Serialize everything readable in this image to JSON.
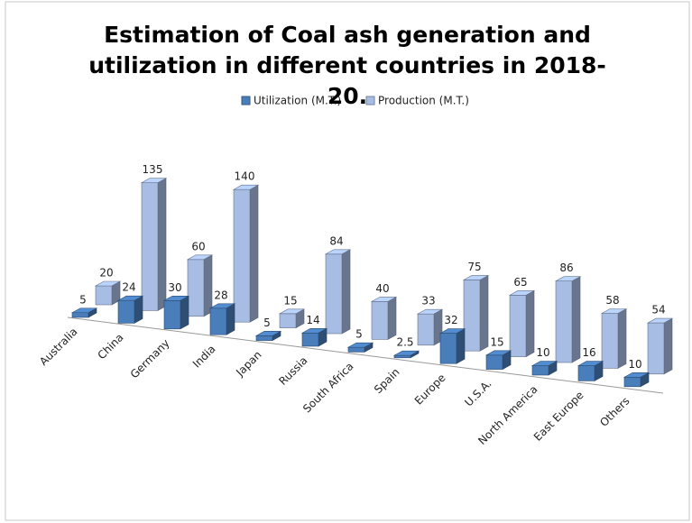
{
  "chart_data": {
    "type": "bar3d",
    "title": "Estimation of Coal ash generation and utilization in different countries in 2018-20.",
    "categories": [
      "Australia",
      "China",
      "Germany",
      "India",
      "Japan",
      "Russia",
      "South Africa",
      "Spain",
      "Europe",
      "U.S.A.",
      "North America",
      "East Europe",
      "Others"
    ],
    "series": [
      {
        "name": "Utilization (M.T.)",
        "color": "#4a7ebb",
        "values": [
          5,
          24,
          30,
          28,
          5,
          14,
          5,
          2.5,
          32,
          15,
          10,
          16,
          10
        ]
      },
      {
        "name": "Production (M.T.)",
        "color": "#a7bde3",
        "values": [
          20,
          135,
          60,
          140,
          15,
          84,
          40,
          33,
          75,
          65,
          86,
          58,
          54
        ]
      }
    ],
    "legend": "top"
  }
}
